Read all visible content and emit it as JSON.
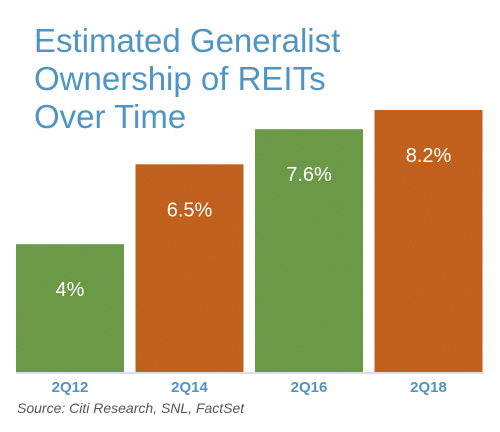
{
  "chart_data": {
    "type": "bar",
    "title": [
      "Estimated Generalist",
      "Ownership of REITs",
      "Over Time"
    ],
    "categories": [
      "2Q12",
      "2Q14",
      "2Q16",
      "2Q18"
    ],
    "values": [
      4,
      6.5,
      7.6,
      8.2
    ],
    "value_labels": [
      "4%",
      "6.5%",
      "7.6%",
      "8.2%"
    ],
    "bar_colors": [
      "#6fa04a",
      "#c9651f",
      "#6fa04a",
      "#c9651f"
    ],
    "ylim": [
      0,
      8.2
    ],
    "xlabel": "",
    "ylabel": "",
    "grid": false
  },
  "source": "Source: Citi Research, SNL, FactSet",
  "colors": {
    "title": "#4f95c3",
    "tick_labels": "#4f95c3",
    "value_labels": "#ffffff"
  }
}
